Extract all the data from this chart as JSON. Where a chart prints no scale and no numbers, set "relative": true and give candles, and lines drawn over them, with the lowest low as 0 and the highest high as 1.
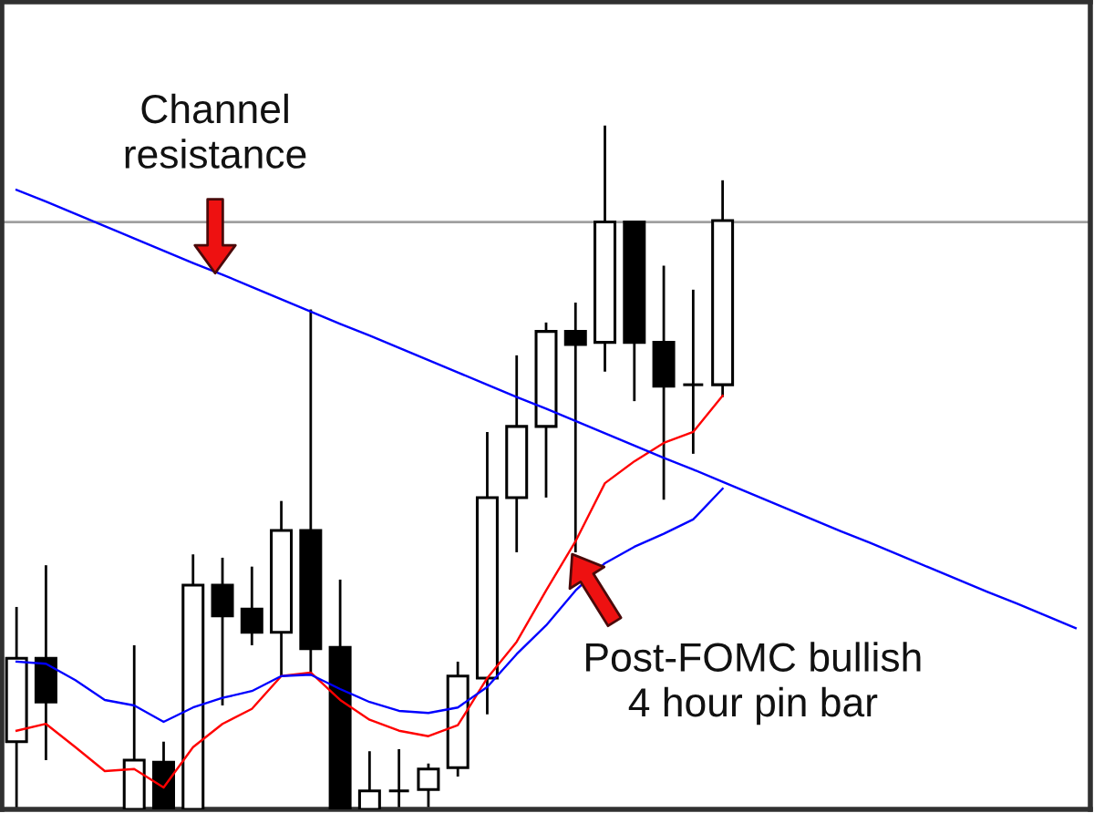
{
  "chart_data": {
    "type": "candlestick",
    "relative": true,
    "categories": [
      null,
      null,
      null,
      null,
      null,
      null,
      null,
      null,
      null,
      null,
      null,
      null,
      null,
      null,
      null,
      null,
      null,
      null,
      null,
      null,
      null,
      null,
      null,
      null,
      null,
      null,
      null,
      null,
      null,
      null,
      null,
      null,
      null,
      null,
      null,
      null,
      null
    ],
    "ohlc": [
      [
        0.099,
        0.296,
        0,
        0.221
      ],
      [
        0.221,
        0.357,
        0.072,
        0.157
      ],
      null,
      null,
      [
        0,
        0.24,
        0,
        0.072
      ],
      [
        0.069,
        0.099,
        0,
        0
      ],
      [
        0,
        0.373,
        0,
        0.328
      ],
      [
        0.328,
        0.368,
        0.152,
        0.283
      ],
      [
        0.293,
        0.355,
        0.24,
        0.259
      ],
      [
        0.259,
        0.451,
        0.195,
        0.408
      ],
      [
        0.408,
        0.731,
        0.2,
        0.235
      ],
      [
        0.237,
        0.336,
        0,
        0
      ],
      [
        0,
        0.085,
        0,
        0.027
      ],
      [
        0.027,
        0.088,
        0,
        0.027
      ],
      [
        0.029,
        0.067,
        0.003,
        0.059
      ],
      [
        0.061,
        0.216,
        0.048,
        0.195
      ],
      [
        0.192,
        0.552,
        0.139,
        0.456
      ],
      [
        0.456,
        0.664,
        0.376,
        0.56
      ],
      [
        0.56,
        0.712,
        0.456,
        0.699
      ],
      [
        0.699,
        0.741,
        0.376,
        0.68
      ],
      [
        0.683,
        1,
        0.64,
        0.859
      ],
      [
        0.859,
        0.861,
        0.597,
        0.683
      ],
      [
        0.683,
        0.795,
        0.453,
        0.619
      ],
      [
        0.621,
        0.76,
        0.52,
        0.621
      ],
      [
        0.621,
        0.92,
        0.603,
        0.861
      ],
      null,
      null,
      null,
      null,
      null,
      null,
      null,
      null,
      null,
      null,
      null,
      null
    ],
    "colors": [
      "#ffffff",
      "#000000",
      null,
      null,
      "#ffffff",
      "#000000",
      "#ffffff",
      "#000000",
      "#000000",
      "#ffffff",
      "#000000",
      "#000000",
      "#ffffff",
      "#000000",
      "#ffffff",
      "#ffffff",
      "#ffffff",
      "#ffffff",
      "#ffffff",
      "#000000",
      "#ffffff",
      "#000000",
      "#000000",
      "#000000",
      "#ffffff",
      null,
      null,
      null,
      null,
      null,
      null,
      null,
      null,
      null,
      null,
      null,
      null
    ],
    "series": [
      {
        "type": "line",
        "color": "#ff0000",
        "values": [
          0.115,
          0.125,
          0.091,
          0.056,
          0.059,
          0.032,
          0.091,
          0.125,
          0.147,
          0.195,
          0.2,
          0.16,
          0.131,
          0.115,
          0.107,
          0.123,
          0.192,
          0.245,
          0.32,
          0.392,
          0.477,
          0.509,
          0.536,
          0.552,
          0.605,
          null,
          null,
          null,
          null,
          null,
          null,
          null,
          null,
          null,
          null,
          null,
          null
        ]
      },
      {
        "type": "line",
        "color": "#0000ff",
        "values": [
          0.216,
          0.213,
          0.189,
          0.16,
          0.152,
          0.128,
          0.149,
          0.163,
          0.173,
          0.195,
          0.197,
          0.176,
          0.157,
          0.144,
          0.141,
          0.149,
          0.179,
          0.227,
          0.269,
          0.32,
          0.36,
          0.384,
          0.403,
          0.424,
          0.469,
          null,
          null,
          null,
          null,
          null,
          null,
          null,
          null,
          null,
          null,
          null,
          null
        ]
      },
      {
        "type": "line",
        "color": "#0000ff",
        "values": [
          0.906,
          0.889,
          0.871,
          0.853,
          0.835,
          0.817,
          0.799,
          0.782,
          0.764,
          0.746,
          0.728,
          0.71,
          0.693,
          0.675,
          0.657,
          0.639,
          0.621,
          0.603,
          0.586,
          0.568,
          0.55,
          0.532,
          0.514,
          0.497,
          0.479,
          0.461,
          0.443,
          0.425,
          0.407,
          0.39,
          0.372,
          0.354,
          0.336,
          0.318,
          0.301,
          0.283,
          0.265
        ]
      }
    ],
    "ref_lines": [
      {
        "axis": "y",
        "value": 0.859,
        "color": "#a0a0a0"
      }
    ],
    "annotations": [
      "Channel\nresistance",
      "Post-FOMC bullish\n4 hour pin bar"
    ]
  }
}
